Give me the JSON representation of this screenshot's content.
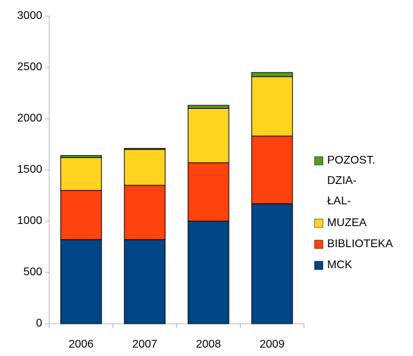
{
  "chart_data": {
    "type": "stacked_bar",
    "categories": [
      "2006",
      "2007",
      "2008",
      "2009"
    ],
    "series": [
      {
        "name": "MCK",
        "color": "#004586",
        "values": [
          820,
          820,
          1000,
          1170
        ]
      },
      {
        "name": "BIBLIOTEKA",
        "color": "#ff420e",
        "values": [
          480,
          530,
          570,
          660
        ]
      },
      {
        "name": "MUZEA",
        "color": "#ffd320",
        "values": [
          320,
          350,
          530,
          580
        ]
      },
      {
        "name": "POZOST. DZIA- ŁAL-",
        "color": "#579d1c",
        "values": [
          20,
          10,
          30,
          40
        ]
      }
    ],
    "ylim": [
      0,
      3000
    ],
    "yticks": [
      0,
      500,
      1000,
      1500,
      2000,
      2500,
      3000
    ],
    "grid": false,
    "legend": "right"
  }
}
